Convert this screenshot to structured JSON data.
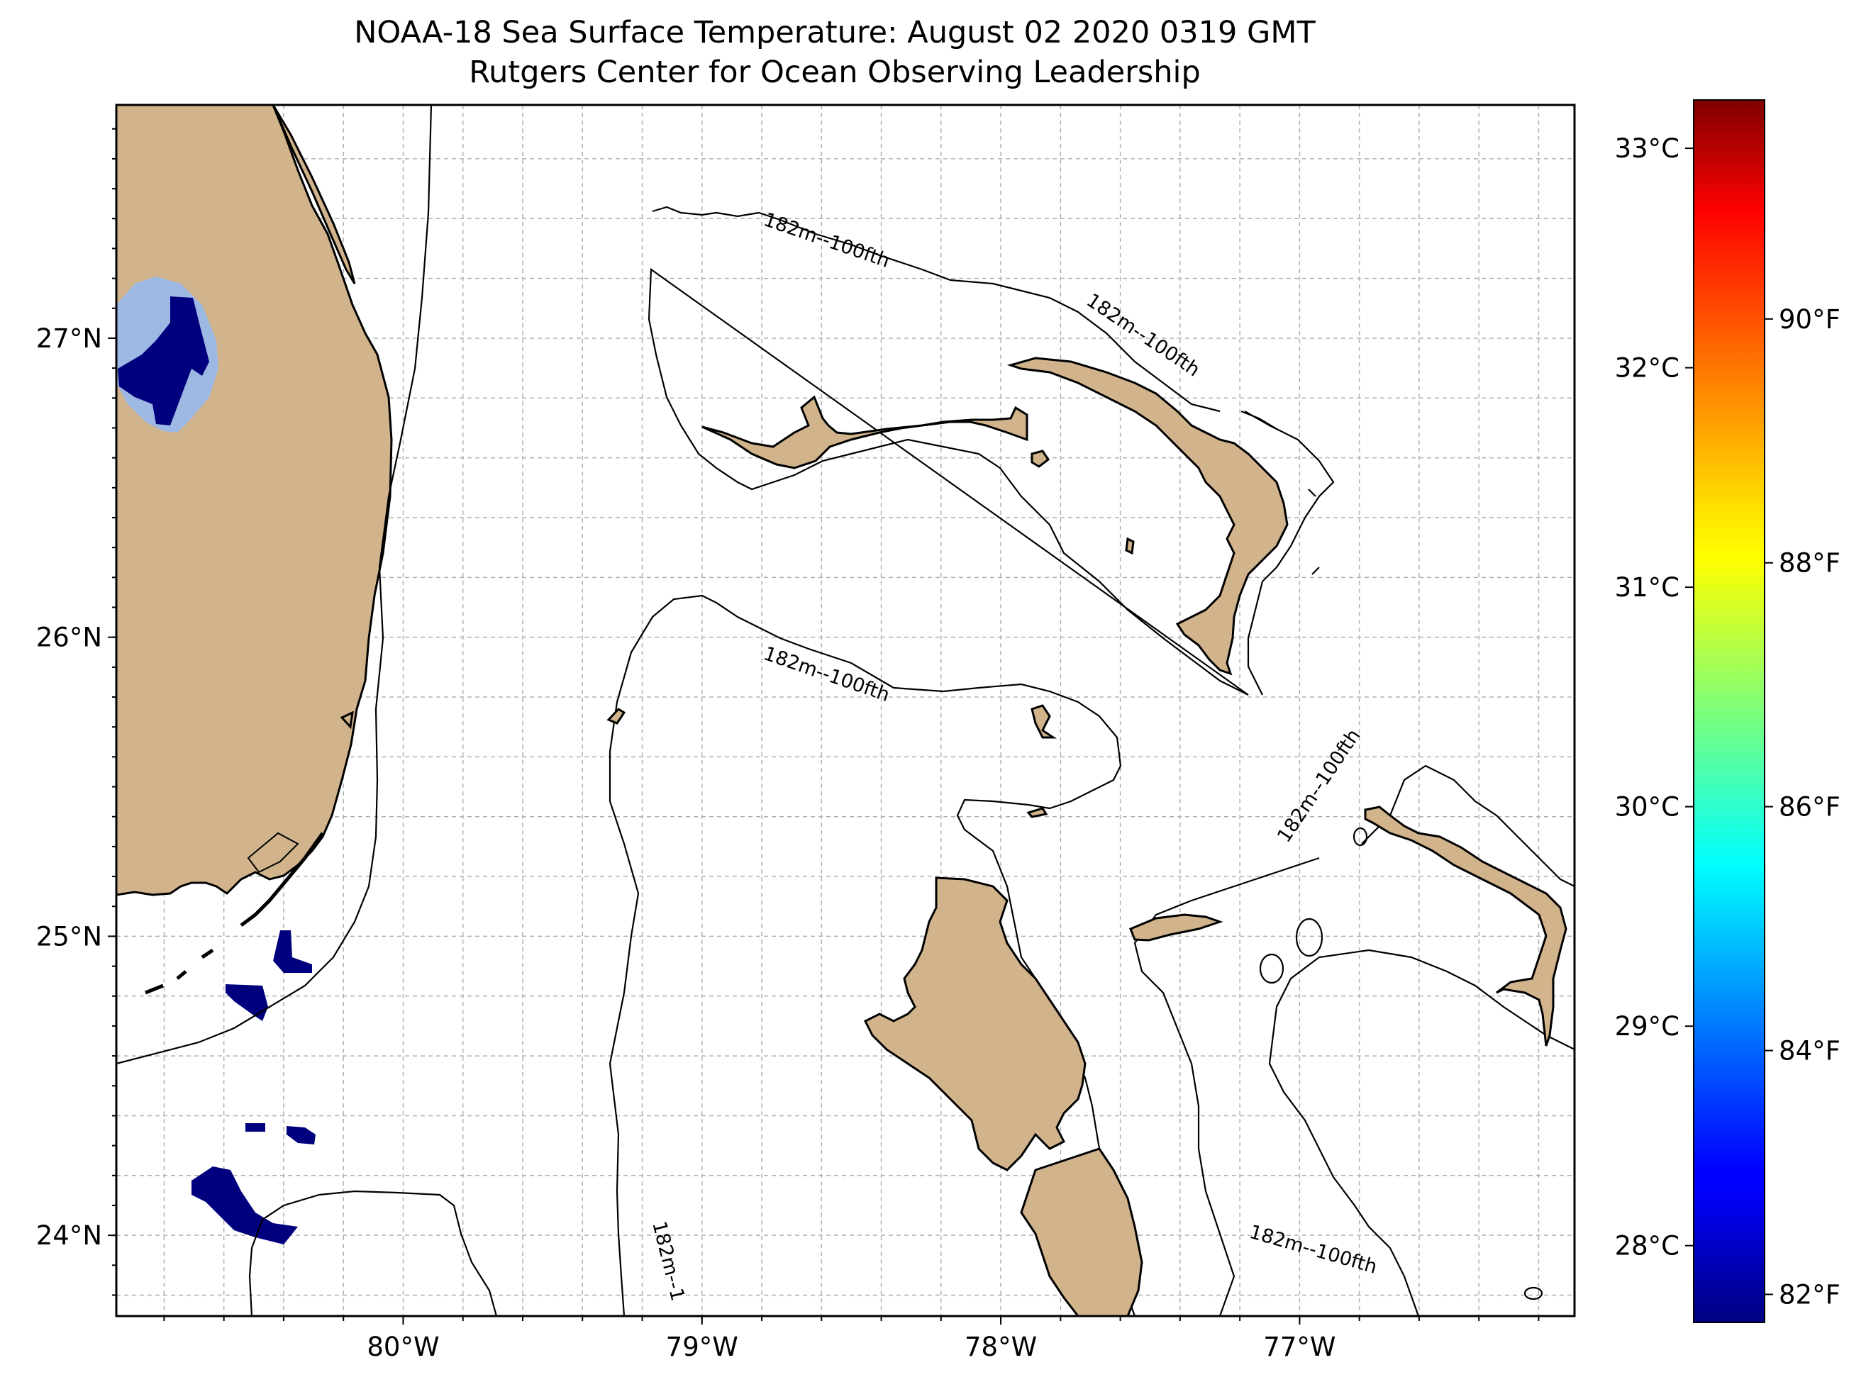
{
  "title": {
    "line1": "NOAA-18 Sea Surface Temperature: August 02 2020 0319 GMT",
    "line2": "Rutgers Center for Ocean Observing Leadership"
  },
  "map": {
    "lon_range": [
      -80.96,
      -76.08
    ],
    "lat_range": [
      23.73,
      27.78
    ],
    "lon_ticks": [
      {
        "lon": -80,
        "label": "80°W"
      },
      {
        "lon": -79,
        "label": "79°W"
      },
      {
        "lon": -78,
        "label": "78°W"
      },
      {
        "lon": -77,
        "label": "77°W"
      }
    ],
    "lat_ticks": [
      {
        "lat": 27,
        "label": "27°N"
      },
      {
        "lat": 26,
        "label": "26°N"
      },
      {
        "lat": 25,
        "label": "25°N"
      },
      {
        "lat": 24,
        "label": "24°N"
      }
    ],
    "gridlines": true,
    "land_color": "#d2b48c",
    "contour_label": "182m--100fth",
    "contour_label_truncated": "182m--1"
  },
  "colorbar": {
    "colormap": "jet",
    "min_c": 27.65,
    "max_c": 33.22,
    "celsius_ticks": [
      {
        "v": 28,
        "label": "28°C"
      },
      {
        "v": 29,
        "label": "29°C"
      },
      {
        "v": 30,
        "label": "30°C"
      },
      {
        "v": 31,
        "label": "31°C"
      },
      {
        "v": 32,
        "label": "32°C"
      },
      {
        "v": 33,
        "label": "33°C"
      }
    ],
    "fahrenheit_ticks": [
      {
        "v": 82,
        "label": "82°F"
      },
      {
        "v": 84,
        "label": "84°F"
      },
      {
        "v": 86,
        "label": "86°F"
      },
      {
        "v": 88,
        "label": "88°F"
      },
      {
        "v": 90,
        "label": "90°F"
      }
    ]
  },
  "sst_colors": {
    "dark_blue": "#00007f",
    "light_blue": "#9db8e3"
  }
}
